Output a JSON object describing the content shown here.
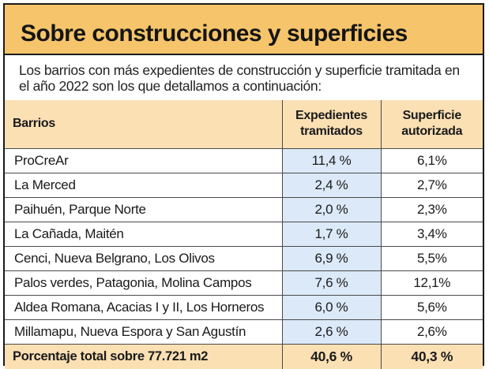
{
  "title": "Sobre construcciones y superficies",
  "intro": "Los barrios con más expedientes de construcción y superficie tramitada en el año 2022 son los que detallamos a continuación:",
  "table": {
    "headers": {
      "barrios": "Barrios",
      "expedientes_line1": "Expedientes",
      "expedientes_line2": "tramitados",
      "superficie_line1": "Superficie",
      "superficie_line2": "autorizada"
    },
    "rows": [
      {
        "barrio": "ProCreAr",
        "expedientes": "11,4 %",
        "superficie": "6,1%"
      },
      {
        "barrio": "La Merced",
        "expedientes": "2,4 %",
        "superficie": "2,7%"
      },
      {
        "barrio": "Paihuén, Parque Norte",
        "expedientes": "2,0 %",
        "superficie": "2,3%"
      },
      {
        "barrio": "La Cañada, Maitén",
        "expedientes": "1,7 %",
        "superficie": "3,4%"
      },
      {
        "barrio": "Cenci, Nueva Belgrano, Los Olivos",
        "expedientes": "6,9 %",
        "superficie": "5,5%"
      },
      {
        "barrio": "Palos verdes, Patagonia, Molina Campos",
        "expedientes": "7,6 %",
        "superficie": "12,1%"
      },
      {
        "barrio": "Aldea Romana, Acacias I y II, Los Horneros",
        "expedientes": "6,0 %",
        "superficie": "5,6%"
      },
      {
        "barrio": "Millamapu, Nueva Espora y San Agustín",
        "expedientes": "2,6 %",
        "superficie": "2,6%"
      }
    ],
    "total": {
      "label": "Porcentaje total sobre 77.721 m2",
      "expedientes": "40,6 %",
      "superficie": "40,3 %"
    }
  },
  "colors": {
    "title_bg": "#f6c46a",
    "header_bg": "#fbe0b4",
    "column_bg": "#dbe9f8",
    "border": "#1a1a1a"
  }
}
